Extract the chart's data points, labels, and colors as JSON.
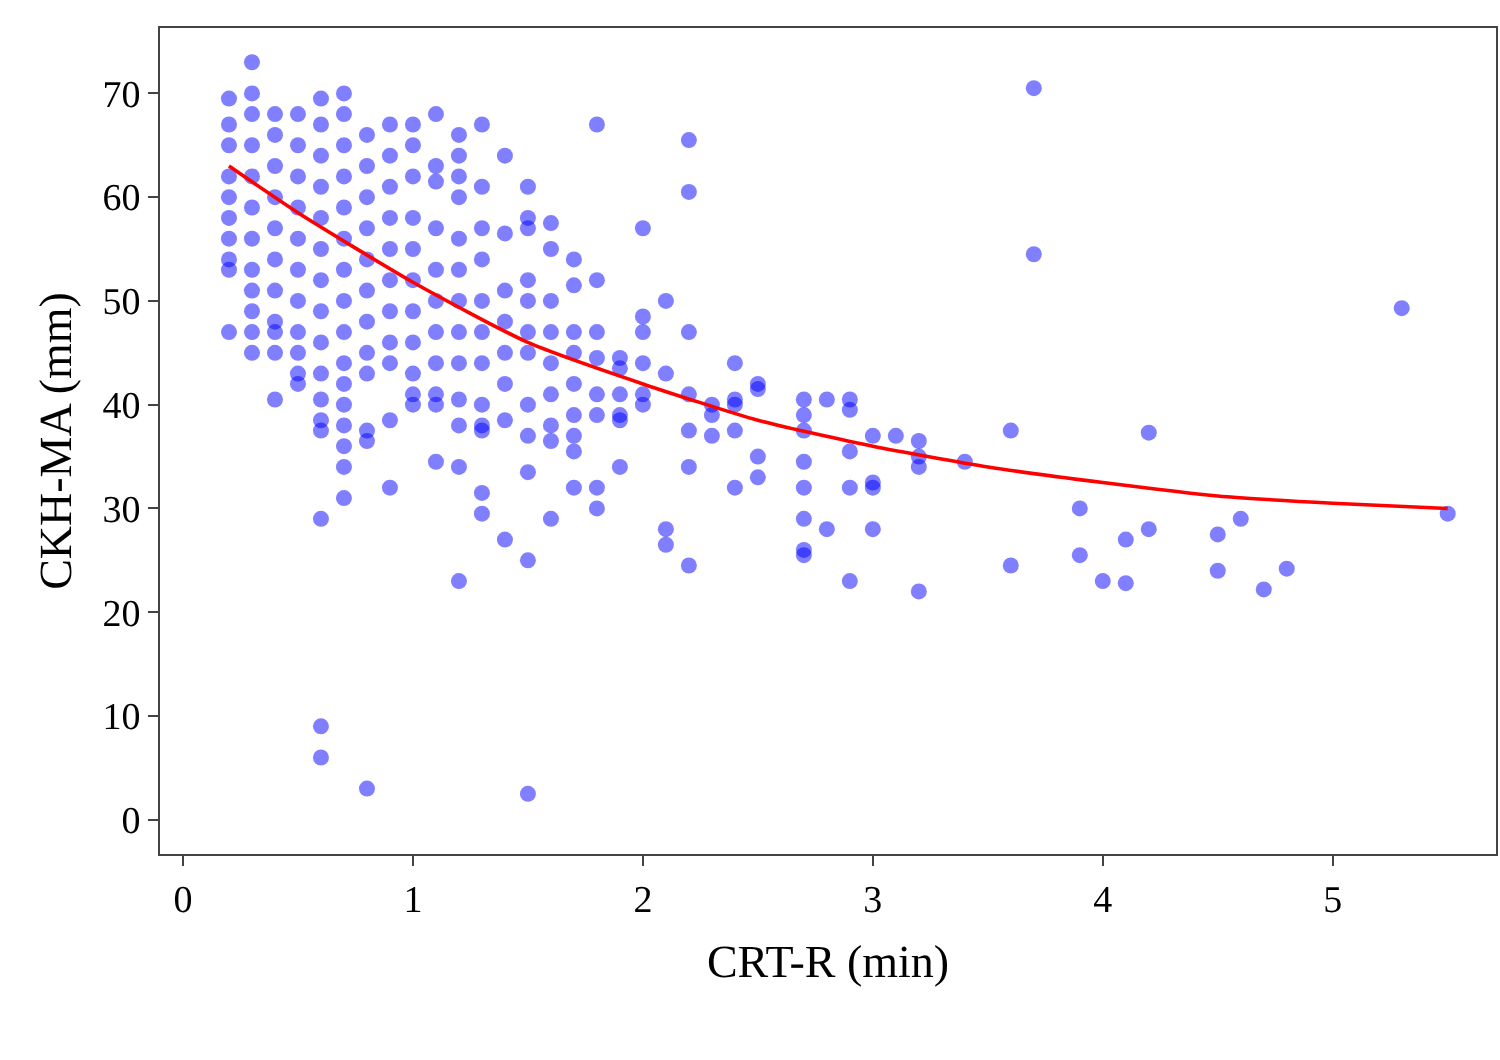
{
  "chart_data": {
    "type": "scatter",
    "xlabel": "CRT-R (min)",
    "ylabel": "CKH-MA (mm)",
    "xlim": [
      -0.1,
      5.71
    ],
    "ylim": [
      -3.3,
      76.3
    ],
    "xticks": [
      0,
      1,
      2,
      3,
      4,
      5
    ],
    "yticks": [
      0,
      10,
      20,
      30,
      40,
      50,
      60,
      70
    ],
    "grid": false,
    "marker": "circle",
    "series": [
      {
        "type": "scatter",
        "color": "#0000ff",
        "x": [
          0.2,
          0.2,
          0.2,
          0.2,
          0.2,
          0.2,
          0.2,
          0.2,
          0.2,
          0.2,
          0.3,
          0.3,
          0.3,
          0.3,
          0.3,
          0.3,
          0.3,
          0.3,
          0.3,
          0.3,
          0.3,
          0.3,
          0.4,
          0.4,
          0.4,
          0.4,
          0.4,
          0.4,
          0.4,
          0.4,
          0.4,
          0.4,
          0.4,
          0.5,
          0.5,
          0.5,
          0.5,
          0.5,
          0.5,
          0.5,
          0.5,
          0.5,
          0.5,
          0.5,
          0.6,
          0.6,
          0.6,
          0.6,
          0.6,
          0.6,
          0.6,
          0.6,
          0.6,
          0.6,
          0.6,
          0.6,
          0.6,
          0.6,
          0.6,
          0.6,
          0.7,
          0.7,
          0.7,
          0.7,
          0.7,
          0.7,
          0.7,
          0.7,
          0.7,
          0.7,
          0.7,
          0.7,
          0.7,
          0.7,
          0.7,
          0.7,
          0.8,
          0.8,
          0.8,
          0.8,
          0.8,
          0.8,
          0.8,
          0.8,
          0.8,
          0.8,
          0.8,
          0.8,
          0.9,
          0.9,
          0.9,
          0.9,
          0.9,
          0.9,
          0.9,
          0.9,
          0.9,
          0.9,
          0.9,
          1.0,
          1.0,
          1.0,
          1.0,
          1.0,
          1.0,
          1.0,
          1.0,
          1.0,
          1.0,
          1.0,
          1.1,
          1.1,
          1.1,
          1.1,
          1.1,
          1.1,
          1.1,
          1.1,
          1.1,
          1.1,
          1.1,
          1.2,
          1.2,
          1.2,
          1.2,
          1.2,
          1.2,
          1.2,
          1.2,
          1.2,
          1.2,
          1.2,
          1.2,
          1.2,
          1.3,
          1.3,
          1.3,
          1.3,
          1.3,
          1.3,
          1.3,
          1.3,
          1.3,
          1.3,
          1.3,
          1.3,
          1.4,
          1.4,
          1.4,
          1.4,
          1.4,
          1.4,
          1.4,
          1.4,
          1.5,
          1.5,
          1.5,
          1.5,
          1.5,
          1.5,
          1.5,
          1.5,
          1.5,
          1.5,
          1.5,
          1.5,
          1.6,
          1.6,
          1.6,
          1.6,
          1.6,
          1.6,
          1.6,
          1.6,
          1.6,
          1.7,
          1.7,
          1.7,
          1.7,
          1.7,
          1.7,
          1.7,
          1.7,
          1.7,
          1.8,
          1.8,
          1.8,
          1.8,
          1.8,
          1.8,
          1.8,
          1.8,
          1.9,
          1.9,
          1.9,
          1.9,
          1.9,
          1.9,
          2.0,
          2.0,
          2.0,
          2.0,
          2.0,
          2.0,
          2.1,
          2.1,
          2.1,
          2.1,
          2.2,
          2.2,
          2.2,
          2.2,
          2.2,
          2.2,
          2.2,
          2.3,
          2.3,
          2.3,
          2.4,
          2.4,
          2.4,
          2.4,
          2.4,
          2.5,
          2.5,
          2.5,
          2.5,
          2.7,
          2.7,
          2.7,
          2.7,
          2.7,
          2.7,
          2.7,
          2.7,
          2.8,
          2.8,
          2.9,
          2.9,
          2.9,
          2.9,
          2.9,
          3.0,
          3.0,
          3.0,
          3.0,
          3.1,
          3.2,
          3.2,
          3.2,
          3.2,
          3.4,
          3.6,
          3.6,
          3.7,
          3.7,
          3.9,
          3.9,
          4.0,
          4.1,
          4.1,
          4.2,
          4.2,
          4.5,
          4.5,
          4.6,
          4.7,
          4.8,
          5.3,
          5.5
        ],
        "values": [
          69.5,
          67,
          65,
          62,
          60,
          58,
          56,
          54,
          53,
          47,
          73,
          70,
          68,
          65,
          62,
          59,
          56,
          53,
          51,
          49,
          47,
          45,
          68,
          66,
          63,
          60,
          57,
          54,
          51,
          48,
          47,
          45,
          40.5,
          68,
          65,
          62,
          59,
          56,
          53,
          50,
          47,
          45,
          43,
          42,
          69.5,
          67,
          64,
          61,
          58,
          55,
          52,
          49,
          46,
          43,
          40.5,
          38.5,
          37.5,
          29,
          9,
          6,
          70,
          68,
          65,
          62,
          59,
          56,
          53,
          50,
          47,
          44,
          42,
          40,
          38,
          36,
          34,
          31,
          66,
          63,
          60,
          57,
          54,
          51,
          48,
          45,
          43,
          37.5,
          36.5,
          3,
          67,
          64,
          61,
          58,
          55,
          52,
          49,
          46,
          44,
          38.5,
          32,
          67,
          65,
          62,
          58,
          55,
          52,
          49,
          46,
          43,
          41,
          40,
          68,
          63,
          61.5,
          57,
          53,
          50,
          47,
          44,
          41,
          40,
          34.5,
          66,
          64,
          62,
          60,
          56,
          53,
          50,
          47,
          44,
          40.5,
          38,
          34,
          23,
          67,
          61,
          57,
          54,
          50,
          47,
          44,
          40,
          38,
          37.5,
          31.5,
          29.5,
          64,
          56.5,
          51,
          48,
          45,
          42,
          38.5,
          27,
          61,
          58,
          57,
          52,
          50,
          47,
          45,
          40,
          37,
          33.5,
          25,
          2.5,
          57.5,
          55,
          50,
          47,
          44,
          41,
          38,
          36.5,
          29,
          54,
          51.5,
          47,
          45,
          42,
          39,
          37,
          35.5,
          32,
          67,
          52,
          47,
          44.5,
          41,
          39,
          32,
          30,
          44.5,
          43.5,
          41,
          39,
          38.5,
          34,
          57,
          48.5,
          47,
          44,
          41,
          40,
          50,
          43,
          28,
          26.5,
          65.5,
          60.5,
          47,
          41,
          37.5,
          34,
          24.5,
          40,
          39,
          37,
          44,
          40.5,
          40,
          37.5,
          32,
          42,
          41.5,
          35,
          33,
          40.5,
          39,
          37.5,
          34.5,
          32,
          29,
          26,
          25.5,
          40.5,
          28,
          40.5,
          39.5,
          35.5,
          32,
          23,
          37,
          32.5,
          32,
          28,
          37,
          36.5,
          35,
          34,
          22,
          34.5,
          37.5,
          24.5,
          70.5,
          54.5,
          30,
          25.5,
          23,
          27,
          22.8,
          37.3,
          28,
          27.5,
          24,
          29,
          22.2,
          24.2,
          49.3,
          29.5
        ]
      },
      {
        "type": "line",
        "color": "#ff0000",
        "marker": "none",
        "line_style": "solid",
        "x": [
          0.2,
          0.5,
          1,
          1.5,
          2,
          2.5,
          3,
          3.5,
          4,
          4.5,
          5,
          5.5
        ],
        "values": [
          63,
          58.5,
          51.8,
          46,
          42,
          38.5,
          36,
          34,
          32.5,
          31.2,
          30.5,
          30
        ]
      }
    ]
  }
}
